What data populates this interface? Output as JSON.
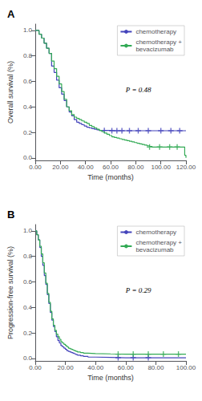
{
  "chart_data": [
    {
      "type": "line",
      "title": "A",
      "xlabel": "Time (months)",
      "ylabel": "Overall survival (%)",
      "annotation": "P = 0.48",
      "xlim": [
        0,
        120
      ],
      "ylim": [
        -0.02,
        1.05
      ],
      "xticks": [
        {
          "value": 0,
          "label": "0.00"
        },
        {
          "value": 20,
          "label": "20.00"
        },
        {
          "value": 40,
          "label": "40.00"
        },
        {
          "value": 60,
          "label": "60.00"
        },
        {
          "value": 80,
          "label": "80.00"
        },
        {
          "value": 100,
          "label": "100.00"
        },
        {
          "value": 120,
          "label": "120.00"
        }
      ],
      "yticks": [
        {
          "value": 0.0,
          "label": "0.0"
        },
        0.2,
        0.4,
        0.6,
        0.8,
        {
          "value": 1.0,
          "label": "1.0"
        }
      ],
      "grid": false,
      "legend": "upper right",
      "series": [
        {
          "name": "chemotherapy",
          "type": "step",
          "color": "#4444bb",
          "x": [
            0,
            3,
            5,
            7,
            9,
            11,
            13,
            15,
            17,
            19,
            21,
            23,
            25,
            27,
            29,
            31,
            33,
            35,
            37,
            39,
            41,
            43,
            45,
            47,
            49,
            51,
            53,
            55,
            57,
            59,
            61,
            63,
            65,
            67,
            69,
            71,
            120
          ],
          "values": [
            1.0,
            0.97,
            0.94,
            0.9,
            0.86,
            0.82,
            0.72,
            0.67,
            0.61,
            0.55,
            0.5,
            0.45,
            0.4,
            0.36,
            0.33,
            0.3,
            0.28,
            0.27,
            0.26,
            0.25,
            0.24,
            0.235,
            0.23,
            0.225,
            0.22,
            0.215,
            0.215,
            0.215,
            0.215,
            0.215,
            0.213,
            0.213,
            0.213,
            0.213,
            0.213,
            0.213,
            0.213
          ]
        },
        {
          "name": "chemotherapy +\nbevacizumab",
          "type": "step",
          "color": "#33aa55",
          "x": [
            0,
            3,
            5,
            7,
            9,
            11,
            13,
            15,
            17,
            19,
            21,
            23,
            25,
            27,
            29,
            31,
            33,
            35,
            37,
            39,
            41,
            43,
            45,
            47,
            49,
            51,
            53,
            55,
            57,
            59,
            61,
            63,
            65,
            67,
            69,
            71,
            73,
            75,
            77,
            79,
            81,
            83,
            85,
            87,
            89,
            91,
            93,
            95,
            97,
            99,
            101,
            103,
            105,
            107,
            109,
            111,
            113,
            115,
            117,
            119,
            120
          ],
          "values": [
            1.0,
            0.97,
            0.94,
            0.9,
            0.86,
            0.82,
            0.76,
            0.7,
            0.64,
            0.58,
            0.52,
            0.46,
            0.4,
            0.37,
            0.34,
            0.32,
            0.31,
            0.3,
            0.29,
            0.28,
            0.27,
            0.255,
            0.245,
            0.235,
            0.225,
            0.215,
            0.205,
            0.195,
            0.185,
            0.175,
            0.165,
            0.16,
            0.155,
            0.15,
            0.145,
            0.14,
            0.135,
            0.13,
            0.125,
            0.12,
            0.115,
            0.11,
            0.105,
            0.1,
            0.095,
            0.09,
            0.085,
            0.085,
            0.085,
            0.085,
            0.085,
            0.085,
            0.085,
            0.085,
            0.085,
            0.085,
            0.085,
            0.085,
            0.085,
            0.02,
            0.0
          ]
        },
        {
          "type": "scatter",
          "marker": "+",
          "color": "#4444bb",
          "x": [
            55,
            61,
            65,
            69,
            75,
            82,
            90,
            100,
            108,
            115
          ],
          "values": [
            0.215,
            0.213,
            0.213,
            0.213,
            0.213,
            0.213,
            0.213,
            0.213,
            0.213,
            0.213
          ]
        },
        {
          "type": "scatter",
          "marker": "+",
          "color": "#33aa55",
          "x": [
            91,
            99,
            107,
            113
          ],
          "values": [
            0.085,
            0.085,
            0.085,
            0.085
          ]
        }
      ]
    },
    {
      "type": "line",
      "title": "B",
      "xlabel": "Time (months)",
      "ylabel": "Progression-free survival (%)",
      "annotation": "P = 0.29",
      "xlim": [
        0,
        100
      ],
      "ylim": [
        -0.02,
        1.05
      ],
      "xticks": [
        {
          "value": 0,
          "label": "0.00"
        },
        {
          "value": 20,
          "label": "20.00"
        },
        {
          "value": 40,
          "label": "40.00"
        },
        {
          "value": 60,
          "label": "60.00"
        },
        {
          "value": 80,
          "label": "80.00"
        },
        {
          "value": 100,
          "label": "100.00"
        }
      ],
      "yticks": [
        {
          "value": 0.0,
          "label": "0.0"
        },
        0.2,
        0.4,
        0.6,
        0.8,
        {
          "value": 1.0,
          "label": "1.0"
        }
      ],
      "grid": false,
      "legend": "upper right",
      "series": [
        {
          "name": "chemotherapy",
          "type": "step",
          "color": "#4444bb",
          "x": [
            0,
            1,
            2,
            3,
            4,
            5,
            6,
            7,
            8,
            9,
            10,
            11,
            12,
            13,
            14,
            15,
            16,
            17,
            18,
            19,
            20,
            21,
            22,
            23,
            24,
            25,
            26,
            27,
            28,
            30,
            32,
            35,
            40,
            50,
            60,
            70,
            80,
            100
          ],
          "values": [
            1.0,
            0.97,
            0.93,
            0.87,
            0.8,
            0.73,
            0.65,
            0.58,
            0.5,
            0.43,
            0.36,
            0.3,
            0.25,
            0.21,
            0.17,
            0.14,
            0.12,
            0.1,
            0.09,
            0.08,
            0.07,
            0.06,
            0.055,
            0.05,
            0.045,
            0.04,
            0.035,
            0.03,
            0.025,
            0.02,
            0.015,
            0.01,
            0.008,
            0.005,
            0.005,
            0.005,
            0.005,
            0.005
          ]
        },
        {
          "name": "chemotherapy +\nbevacizumab",
          "type": "step",
          "color": "#33aa55",
          "x": [
            0,
            1,
            2,
            3,
            4,
            5,
            6,
            7,
            8,
            9,
            10,
            11,
            12,
            13,
            14,
            15,
            16,
            17,
            18,
            19,
            20,
            21,
            22,
            23,
            24,
            25,
            26,
            27,
            28,
            30,
            32,
            35,
            40,
            50,
            60,
            70,
            80,
            90,
            100
          ],
          "values": [
            1.0,
            0.97,
            0.93,
            0.88,
            0.82,
            0.75,
            0.67,
            0.59,
            0.51,
            0.44,
            0.37,
            0.31,
            0.26,
            0.22,
            0.19,
            0.17,
            0.15,
            0.13,
            0.12,
            0.11,
            0.1,
            0.09,
            0.08,
            0.075,
            0.07,
            0.065,
            0.06,
            0.055,
            0.05,
            0.045,
            0.04,
            0.038,
            0.035,
            0.033,
            0.033,
            0.033,
            0.033,
            0.033,
            0.033
          ]
        },
        {
          "type": "scatter",
          "marker": "+",
          "color": "#4444bb",
          "x": [
            55,
            65,
            75
          ],
          "values": [
            0.005,
            0.005,
            0.005
          ]
        },
        {
          "type": "scatter",
          "marker": "+",
          "color": "#33aa55",
          "x": [
            55,
            65,
            75,
            85,
            95
          ],
          "values": [
            0.033,
            0.033,
            0.033,
            0.033,
            0.033
          ]
        }
      ]
    }
  ]
}
